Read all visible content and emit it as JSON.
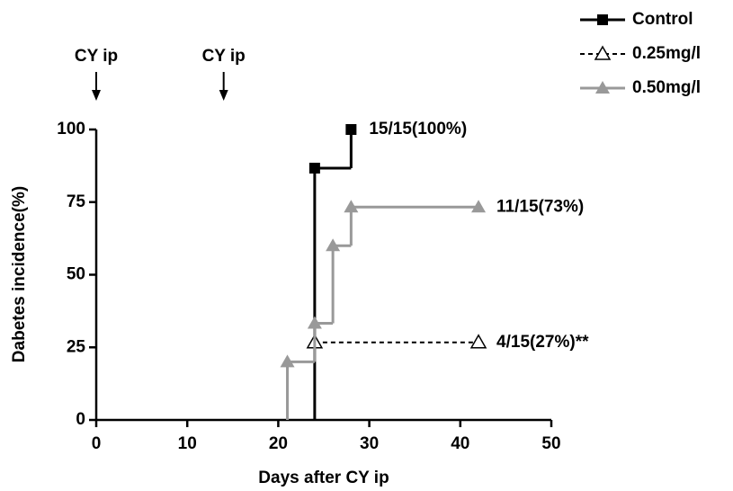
{
  "chart_data": {
    "type": "step",
    "xlabel": "Days after CY ip",
    "ylabel": "Dabetes incidence(%)",
    "xlim": [
      0,
      50
    ],
    "xticks": [
      0,
      10,
      20,
      30,
      40,
      50
    ],
    "ylim": [
      0,
      100
    ],
    "yticks": [
      0,
      25,
      50,
      75,
      100
    ],
    "legend": "upper right",
    "arrows": [
      {
        "label": "CY ip",
        "x": 0
      },
      {
        "label": "CY ip",
        "x": 14
      }
    ],
    "series": [
      {
        "name": "Control",
        "color": "#000000",
        "line_style": "solid",
        "marker": "square",
        "x": [
          24,
          24,
          28
        ],
        "values": [
          0,
          86.7,
          100
        ],
        "end_label": "15/15(100%)"
      },
      {
        "name": "0.25mg/l",
        "color": "#000000",
        "line_style": "dashed",
        "marker": "triangle-open",
        "x": [
          24,
          42
        ],
        "values": [
          26.7,
          26.7
        ],
        "end_label": "4/15(27%)**"
      },
      {
        "name": "0.50mg/l",
        "color": "#999999",
        "line_style": "solid",
        "marker": "triangle",
        "x": [
          21,
          21,
          24,
          26,
          28,
          42
        ],
        "values": [
          0,
          20,
          33.3,
          60,
          73.3,
          73.3
        ],
        "end_label": "11/15(73%)"
      }
    ]
  }
}
